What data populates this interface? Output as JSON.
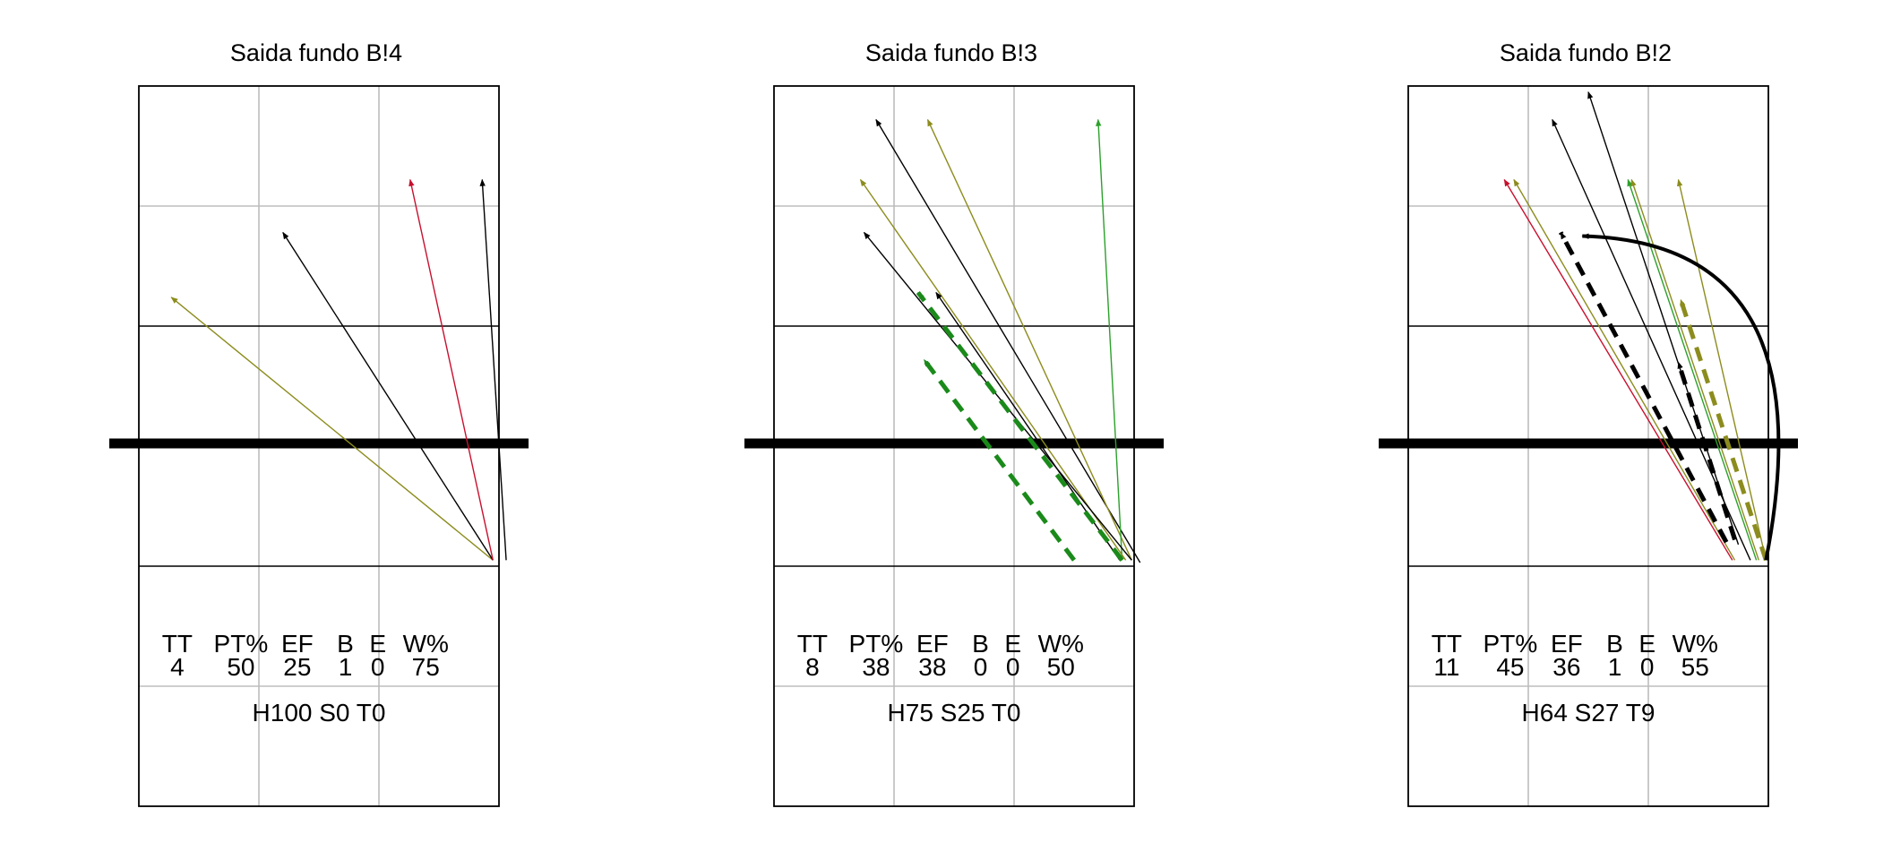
{
  "chart_data": [
    {
      "type": "court-arrow-plot",
      "title": "Saida fundo B!4",
      "stats_header": [
        "TT",
        "PT%",
        "EF",
        "B",
        "E",
        "W%"
      ],
      "stats_values": [
        "4",
        "50",
        "25",
        "1",
        "0",
        "75"
      ],
      "summary": "H100 S0 T0",
      "arrows": [
        {
          "from": [
            2.95,
            0.05
          ],
          "to": [
            0.27,
            2.24
          ],
          "color": "#8c8c1e",
          "style": "solid",
          "weight": "thin"
        },
        {
          "from": [
            2.95,
            0.05
          ],
          "to": [
            1.2,
            2.78
          ],
          "color": "#000000",
          "style": "solid",
          "weight": "thin"
        },
        {
          "from": [
            2.95,
            0.05
          ],
          "to": [
            2.26,
            3.22
          ],
          "color": "#c8102e",
          "style": "solid",
          "weight": "thin"
        },
        {
          "from": [
            3.06,
            0.05
          ],
          "to": [
            2.86,
            3.22
          ],
          "color": "#000000",
          "style": "solid",
          "weight": "thin"
        }
      ]
    },
    {
      "type": "court-arrow-plot",
      "title": "Saida fundo B!3",
      "stats_header": [
        "TT",
        "PT%",
        "EF",
        "B",
        "E",
        "W%"
      ],
      "stats_values": [
        "8",
        "38",
        "38",
        "0",
        "0",
        "50"
      ],
      "summary": "H75 S25 T0",
      "arrows": [
        {
          "from": [
            3.05,
            0.03
          ],
          "to": [
            0.85,
            3.72
          ],
          "color": "#000000",
          "style": "solid",
          "weight": "thin"
        },
        {
          "from": [
            2.98,
            0.05
          ],
          "to": [
            1.28,
            3.72
          ],
          "color": "#8c8c1e",
          "style": "solid",
          "weight": "thin"
        },
        {
          "from": [
            2.9,
            0.05
          ],
          "to": [
            2.7,
            3.72
          ],
          "color": "#2ca02c",
          "style": "solid",
          "weight": "thin"
        },
        {
          "from": [
            2.93,
            0.05
          ],
          "to": [
            0.72,
            3.22
          ],
          "color": "#8c8c1e",
          "style": "solid",
          "weight": "thin"
        },
        {
          "from": [
            2.98,
            0.05
          ],
          "to": [
            0.75,
            2.78
          ],
          "color": "#000000",
          "style": "solid",
          "weight": "thin"
        },
        {
          "from": [
            2.88,
            0.05
          ],
          "to": [
            1.35,
            2.28
          ],
          "color": "#000000",
          "style": "solid",
          "weight": "thin"
        },
        {
          "from": [
            2.9,
            0.05
          ],
          "to": [
            1.2,
            2.28
          ],
          "color": "#1a8a1a",
          "style": "dashed",
          "weight": "thick"
        },
        {
          "from": [
            2.5,
            0.05
          ],
          "to": [
            1.25,
            1.72
          ],
          "color": "#1a8a1a",
          "style": "dashed",
          "weight": "thick"
        }
      ]
    },
    {
      "type": "court-arrow-plot",
      "title": "Saida fundo B!2",
      "stats_header": [
        "TT",
        "PT%",
        "EF",
        "B",
        "E",
        "W%"
      ],
      "stats_values": [
        "11",
        "45",
        "36",
        "1",
        "0",
        "55"
      ],
      "summary": "H64 S27 T9",
      "arrows": [
        {
          "from": [
            2.7,
            0.05
          ],
          "to": [
            0.8,
            3.22
          ],
          "color": "#c8102e",
          "style": "solid",
          "weight": "thin"
        },
        {
          "from": [
            2.72,
            0.05
          ],
          "to": [
            0.88,
            3.22
          ],
          "color": "#8c8c1e",
          "style": "solid",
          "weight": "thin"
        },
        {
          "from": [
            2.85,
            0.05
          ],
          "to": [
            1.2,
            3.72
          ],
          "color": "#000000",
          "style": "solid",
          "weight": "thin"
        },
        {
          "from": [
            2.75,
            0.18
          ],
          "to": [
            1.5,
            3.95
          ],
          "color": "#000000",
          "style": "solid",
          "weight": "thin"
        },
        {
          "from": [
            2.9,
            0.05
          ],
          "to": [
            1.83,
            3.22
          ],
          "color": "#2ca02c",
          "style": "solid",
          "weight": "thin"
        },
        {
          "from": [
            2.92,
            0.05
          ],
          "to": [
            1.86,
            3.22
          ],
          "color": "#8c8c1e",
          "style": "solid",
          "weight": "thin"
        },
        {
          "from": [
            2.98,
            0.05
          ],
          "to": [
            2.25,
            3.22
          ],
          "color": "#8c8c1e",
          "style": "solid",
          "weight": "thin"
        },
        {
          "from": [
            2.65,
            0.2
          ],
          "to": [
            1.27,
            2.78
          ],
          "color": "#000000",
          "style": "dashed",
          "weight": "thick"
        },
        {
          "from": [
            2.98,
            0.05
          ],
          "to": [
            2.27,
            2.22
          ],
          "color": "#8c8c1e",
          "style": "dashed",
          "weight": "thick"
        },
        {
          "from": [
            2.72,
            0.22
          ],
          "to": [
            2.25,
            1.7
          ],
          "color": "#000000",
          "style": "dashed",
          "weight": "thick"
        }
      ],
      "arcs": [
        {
          "from": [
            2.98,
            0.05
          ],
          "to": [
            1.45,
            2.75
          ],
          "control": [
            3.5,
            2.7
          ],
          "color": "#000000",
          "weight": "thick"
        }
      ]
    }
  ]
}
